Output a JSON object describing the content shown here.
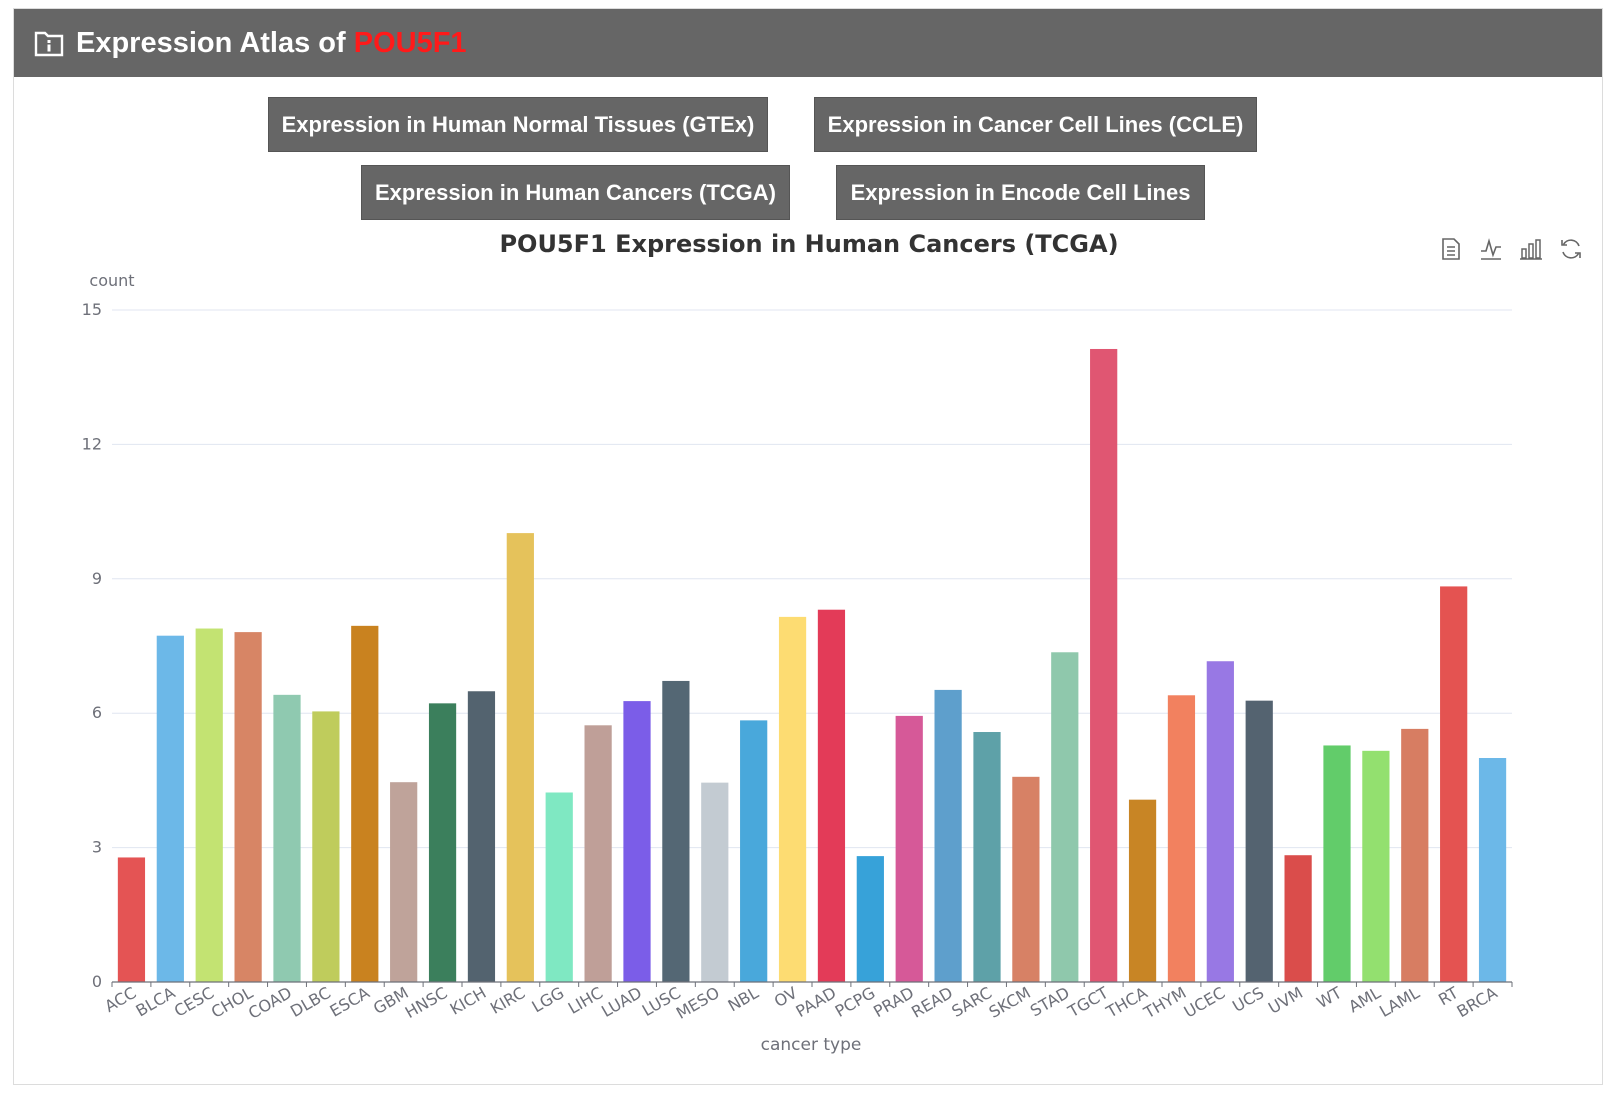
{
  "header": {
    "title_prefix": "Expression Atlas of",
    "gene": "POU5F1",
    "icon": "info-folder-icon"
  },
  "buttons": {
    "gtex": "Expression in Human Normal Tissues (GTEx)",
    "ccle": "Expression in Cancer Cell Lines (CCLE)",
    "tcga": "Expression in Human Cancers (TCGA)",
    "encode": "Expression in Encode Cell Lines"
  },
  "toolbox": [
    "data-view-icon",
    "line-chart-icon",
    "bar-chart-icon",
    "restore-icon"
  ],
  "chart_data": {
    "type": "bar",
    "title": "POU5F1 Expression in Human Cancers (TCGA)",
    "xlabel": "cancer type",
    "ylabel": "count",
    "ylim": [
      0,
      15
    ],
    "yticks": [
      0,
      3,
      6,
      9,
      12,
      15
    ],
    "grid": true,
    "categories": [
      "ACC",
      "BLCA",
      "CESC",
      "CHOL",
      "COAD",
      "DLBC",
      "ESCA",
      "GBM",
      "HNSC",
      "KICH",
      "KIRC",
      "LGG",
      "LIHC",
      "LUAD",
      "LUSC",
      "MESO",
      "NBL",
      "OV",
      "PAAD",
      "PCPG",
      "PRAD",
      "READ",
      "SARC",
      "SKCM",
      "STAD",
      "TGCT",
      "THCA",
      "THYM",
      "UCEC",
      "UCS",
      "UVM",
      "WT",
      "AML",
      "LAML",
      "RT",
      "BRCA"
    ],
    "values": [
      2.78,
      7.73,
      7.89,
      7.81,
      6.41,
      6.04,
      7.95,
      4.46,
      6.22,
      6.49,
      10.02,
      4.23,
      5.73,
      6.27,
      6.72,
      4.45,
      5.84,
      8.15,
      8.31,
      2.81,
      5.94,
      6.52,
      5.58,
      4.58,
      7.36,
      14.13,
      4.07,
      6.4,
      7.16,
      6.28,
      2.83,
      5.28,
      5.16,
      5.65,
      8.83,
      5.0
    ],
    "colors": [
      "#e45454",
      "#6cb8e8",
      "#c3e372",
      "#d78565",
      "#8fc9b0",
      "#bfcc5c",
      "#c9821f",
      "#bfa39a",
      "#3b7f5c",
      "#53636f",
      "#e5c25b",
      "#7fe8c2",
      "#bf9f98",
      "#7b5de8",
      "#546774",
      "#c3cbd2",
      "#49a8db",
      "#fddc72",
      "#e33b58",
      "#37a2d9",
      "#d65998",
      "#5e9fcc",
      "#5ea1a8",
      "#d78165",
      "#8fc8ac",
      "#e05672",
      "#c88525",
      "#f2815f",
      "#9878e4",
      "#546370",
      "#da4d4b",
      "#62cc6a",
      "#93e06f",
      "#d77d62",
      "#e45351",
      "#6cb8e8"
    ]
  }
}
